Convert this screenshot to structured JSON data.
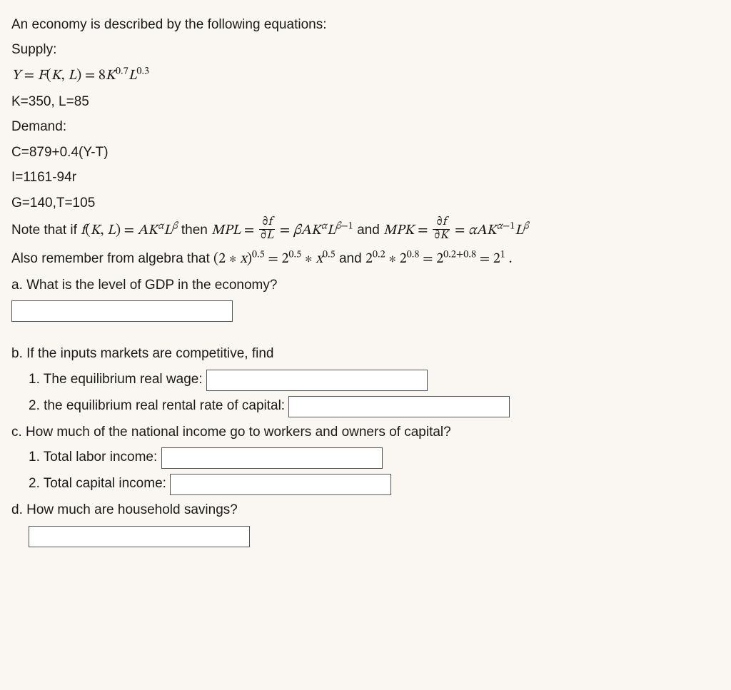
{
  "intro": "An economy is described by the following equations:",
  "supply_label": "Supply:",
  "supply_tex": "Y = F(K, L) = 8K^{0.7}L^{0.3}",
  "supply_A": 8,
  "supply_alpha": 0.7,
  "supply_beta": 0.3,
  "params_line": "K=350, L=85",
  "K": 350,
  "L": 85,
  "demand_label": "Demand:",
  "consumption": "C=879+0.4(Y-T)",
  "investment": "I=1161-94r",
  "gov_tax": "G=140,T=105",
  "G": 140,
  "T": 105,
  "note_prefix": "Note that if ",
  "note_f_tex": "f(K, L) = AK^{α}L^{β}",
  "note_then": " then ",
  "mpl_tex": "MPL = ∂f/∂L = βAK^{α}L^{β−1}",
  "note_and": " and ",
  "mpk_tex": "MPK = ∂f/∂K = αAK^{α−1}L^{β}",
  "algebra_prefix": "Also remember from algebra that ",
  "algebra_tex": "(2 ∗ x)^{0.5} = 2^{0.5} ∗ x^{0.5} and 2^{0.2} ∗ 2^{0.8} = 2^{0.2+0.8} = 2^{1} .",
  "q_a": "a. What is the level of GDP in the economy?",
  "q_b": "b. If the inputs markets are competitive, find",
  "q_b1": "1. The equilibrium real wage:",
  "q_b2": "2. the equilibrium real rental rate of capital:",
  "q_c": "c. How much of the national income go to workers and owners of capital?",
  "q_c1": "1. Total labor income:",
  "q_c2": "2. Total capital income:",
  "q_d": "d. How much are household savings?",
  "answers": {
    "a": "",
    "b1": "",
    "b2": "",
    "c1": "",
    "c2": "",
    "d": ""
  }
}
